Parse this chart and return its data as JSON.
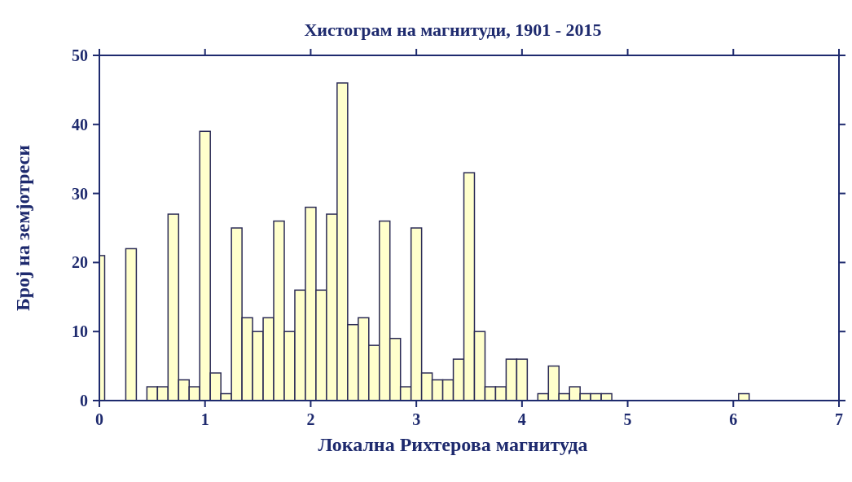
{
  "chart_data": {
    "type": "bar",
    "title": "Хистограм на магнитуди, 1901 - 2015",
    "xlabel": "Локална Рихтерова магнитуда",
    "ylabel": "Број на земјотреси",
    "x": [
      0,
      0.1,
      0.2,
      0.3,
      0.4,
      0.5,
      0.6,
      0.7,
      0.8,
      0.9,
      1,
      1.1,
      1.2,
      1.3,
      1.4,
      1.5,
      1.6,
      1.7,
      1.8,
      1.9,
      2,
      2.1,
      2.2,
      2.3,
      2.4,
      2.5,
      2.6,
      2.7,
      2.8,
      2.9,
      3,
      3.1,
      3.2,
      3.3,
      3.4,
      3.5,
      3.6,
      3.7,
      3.8,
      3.9,
      4,
      4.1,
      4.2,
      4.3,
      4.4,
      4.5,
      4.6,
      4.7,
      4.8,
      4.9,
      5,
      5.1,
      5.2,
      5.3,
      5.4,
      5.5,
      5.6,
      5.7,
      5.8,
      5.9,
      6,
      6.1
    ],
    "values": [
      21,
      0,
      0,
      22,
      0,
      2,
      2,
      27,
      3,
      2,
      39,
      4,
      1,
      25,
      12,
      10,
      12,
      26,
      10,
      16,
      28,
      16,
      27,
      46,
      11,
      12,
      8,
      26,
      9,
      2,
      25,
      4,
      3,
      3,
      6,
      33,
      10,
      2,
      2,
      6,
      6,
      0,
      1,
      5,
      1,
      2,
      1,
      1,
      1,
      0,
      0,
      0,
      0,
      0,
      0,
      0,
      0,
      0,
      0,
      0,
      0,
      1
    ],
    "color": "#ffffcc",
    "xlim": [
      0,
      7
    ],
    "xticks": [
      0,
      1,
      2,
      3,
      4,
      5,
      6,
      7
    ],
    "ylim": [
      0,
      50
    ],
    "yticks": [
      0,
      10,
      20,
      30,
      40,
      50
    ],
    "grid": false
  }
}
